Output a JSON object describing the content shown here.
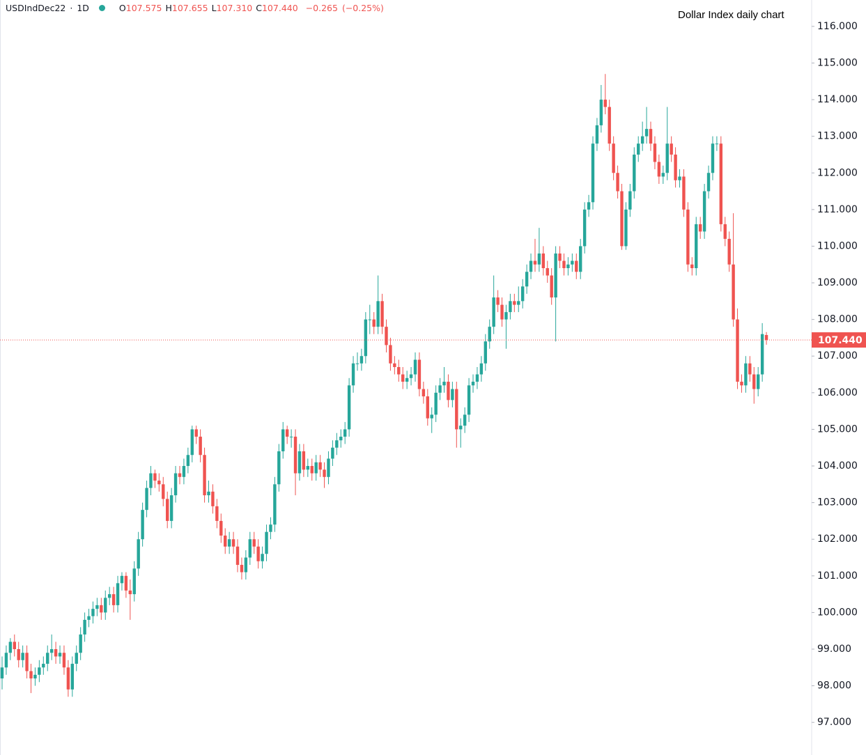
{
  "header": {
    "symbol": "USDIndDec22",
    "interval": "1D",
    "ohlc_legend": [
      {
        "key": "O",
        "value": "107.575"
      },
      {
        "key": "H",
        "value": "107.655"
      },
      {
        "key": "L",
        "value": "107.310"
      },
      {
        "key": "C",
        "value": "107.440"
      }
    ],
    "change": "−0.265",
    "change_pct": "(−0.25%)"
  },
  "chart_data": {
    "type": "candlestick",
    "annotation": "Dollar Index daily chart",
    "up_color": "#26a69a",
    "down_color": "#ef5350",
    "ylim": [
      96.11,
      116.72
    ],
    "yticks": [
      {
        "value": 97,
        "label": "97.000"
      },
      {
        "value": 98,
        "label": "98.000"
      },
      {
        "value": 99,
        "label": "99.000"
      },
      {
        "value": 100,
        "label": "100.000"
      },
      {
        "value": 101,
        "label": "101.000"
      },
      {
        "value": 102,
        "label": "102.000"
      },
      {
        "value": 103,
        "label": "103.000"
      },
      {
        "value": 104,
        "label": "104.000"
      },
      {
        "value": 105,
        "label": "105.000"
      },
      {
        "value": 106,
        "label": "106.000"
      },
      {
        "value": 107,
        "label": "107.000"
      },
      {
        "value": 108,
        "label": "108.000"
      },
      {
        "value": 109,
        "label": "109.000"
      },
      {
        "value": 110,
        "label": "110.000"
      },
      {
        "value": 111,
        "label": "111.000"
      },
      {
        "value": 112,
        "label": "112.000"
      },
      {
        "value": 113,
        "label": "113.000"
      },
      {
        "value": 114,
        "label": "114.000"
      },
      {
        "value": 115,
        "label": "115.000"
      },
      {
        "value": 116,
        "label": "116.000"
      }
    ],
    "last_price": {
      "value": 107.44,
      "label": "107.440"
    },
    "ohlc": [
      [
        98.2,
        98.8,
        97.9,
        98.5
      ],
      [
        98.5,
        99.1,
        98.3,
        98.9
      ],
      [
        98.9,
        99.3,
        98.7,
        99.2
      ],
      [
        99.2,
        99.4,
        98.8,
        99.0
      ],
      [
        99.0,
        99.2,
        98.5,
        98.7
      ],
      [
        98.7,
        99.1,
        98.5,
        98.9
      ],
      [
        98.9,
        99.1,
        98.2,
        98.4
      ],
      [
        98.4,
        98.6,
        97.8,
        98.2
      ],
      [
        98.2,
        98.5,
        98.0,
        98.3
      ],
      [
        98.3,
        98.7,
        98.1,
        98.5
      ],
      [
        98.5,
        98.8,
        98.3,
        98.6
      ],
      [
        98.6,
        99.1,
        98.4,
        98.9
      ],
      [
        98.9,
        99.4,
        98.7,
        99.0
      ],
      [
        99.0,
        99.2,
        98.6,
        98.8
      ],
      [
        98.8,
        99.1,
        98.6,
        98.9
      ],
      [
        98.9,
        99.1,
        98.3,
        98.5
      ],
      [
        98.5,
        98.7,
        97.7,
        97.9
      ],
      [
        97.9,
        98.8,
        97.7,
        98.6
      ],
      [
        98.6,
        99.1,
        98.4,
        98.9
      ],
      [
        98.9,
        99.6,
        98.7,
        99.4
      ],
      [
        99.4,
        100.0,
        99.2,
        99.8
      ],
      [
        99.8,
        100.1,
        99.6,
        99.9
      ],
      [
        99.9,
        100.3,
        99.7,
        100.1
      ],
      [
        100.1,
        100.4,
        99.9,
        100.2
      ],
      [
        100.2,
        100.4,
        99.8,
        100.0
      ],
      [
        100.0,
        100.6,
        99.8,
        100.4
      ],
      [
        100.4,
        100.7,
        100.2,
        100.5
      ],
      [
        100.5,
        100.7,
        100.0,
        100.2
      ],
      [
        100.2,
        101.0,
        100.0,
        100.8
      ],
      [
        100.8,
        101.1,
        100.6,
        101.0
      ],
      [
        101.0,
        101.1,
        100.4,
        100.6
      ],
      [
        100.6,
        100.9,
        99.8,
        100.5
      ],
      [
        100.5,
        101.4,
        100.3,
        101.2
      ],
      [
        101.2,
        102.2,
        101.0,
        102.0
      ],
      [
        102.0,
        103.0,
        101.8,
        102.8
      ],
      [
        102.8,
        103.6,
        102.6,
        103.4
      ],
      [
        103.4,
        104.0,
        103.2,
        103.8
      ],
      [
        103.8,
        103.9,
        103.4,
        103.6
      ],
      [
        103.6,
        103.8,
        103.3,
        103.5
      ],
      [
        103.5,
        103.7,
        102.9,
        103.1
      ],
      [
        103.1,
        103.3,
        102.3,
        102.5
      ],
      [
        102.5,
        103.4,
        102.3,
        103.2
      ],
      [
        103.2,
        104.0,
        103.0,
        103.8
      ],
      [
        103.8,
        104.0,
        103.5,
        103.7
      ],
      [
        103.7,
        104.2,
        103.5,
        104.0
      ],
      [
        104.0,
        104.5,
        103.8,
        104.3
      ],
      [
        104.3,
        105.1,
        104.1,
        105.0
      ],
      [
        105.0,
        105.1,
        104.6,
        104.8
      ],
      [
        104.8,
        105.0,
        104.1,
        104.3
      ],
      [
        104.3,
        104.5,
        103.0,
        103.2
      ],
      [
        103.2,
        103.6,
        103.0,
        103.3
      ],
      [
        103.3,
        103.5,
        102.7,
        102.9
      ],
      [
        102.9,
        103.1,
        102.3,
        102.5
      ],
      [
        102.5,
        102.7,
        101.9,
        102.1
      ],
      [
        102.1,
        102.3,
        101.6,
        101.8
      ],
      [
        101.8,
        102.2,
        101.6,
        102.0
      ],
      [
        102.0,
        102.2,
        101.6,
        101.8
      ],
      [
        101.8,
        102.0,
        101.1,
        101.3
      ],
      [
        101.3,
        101.5,
        100.9,
        101.1
      ],
      [
        101.1,
        101.7,
        100.9,
        101.5
      ],
      [
        101.5,
        102.2,
        101.3,
        102.0
      ],
      [
        102.0,
        102.2,
        101.6,
        101.8
      ],
      [
        101.8,
        102.0,
        101.2,
        101.4
      ],
      [
        101.4,
        101.8,
        101.2,
        101.6
      ],
      [
        101.6,
        102.4,
        101.4,
        102.2
      ],
      [
        102.2,
        102.6,
        102.0,
        102.4
      ],
      [
        102.4,
        103.7,
        102.2,
        103.5
      ],
      [
        103.5,
        104.6,
        103.3,
        104.4
      ],
      [
        104.4,
        105.2,
        104.2,
        105.0
      ],
      [
        105.0,
        105.1,
        104.6,
        104.8
      ],
      [
        104.8,
        105.0,
        104.5,
        104.8
      ],
      [
        104.8,
        105.0,
        103.2,
        103.8
      ],
      [
        103.8,
        104.6,
        103.6,
        104.4
      ],
      [
        104.4,
        104.6,
        103.7,
        103.9
      ],
      [
        103.9,
        104.2,
        103.7,
        104.0
      ],
      [
        104.0,
        104.2,
        103.6,
        103.8
      ],
      [
        103.8,
        104.3,
        103.6,
        104.1
      ],
      [
        104.1,
        104.3,
        103.7,
        103.9
      ],
      [
        103.9,
        104.1,
        103.4,
        103.7
      ],
      [
        103.7,
        104.4,
        103.5,
        104.2
      ],
      [
        104.2,
        104.7,
        104.0,
        104.5
      ],
      [
        104.5,
        104.9,
        104.3,
        104.7
      ],
      [
        104.7,
        105.0,
        104.5,
        104.8
      ],
      [
        104.8,
        105.2,
        104.6,
        105.0
      ],
      [
        105.0,
        106.4,
        104.8,
        106.2
      ],
      [
        106.2,
        107.0,
        106.0,
        106.8
      ],
      [
        106.8,
        107.1,
        106.6,
        106.8
      ],
      [
        106.8,
        107.2,
        106.6,
        107.0
      ],
      [
        107.0,
        108.2,
        106.8,
        108.0
      ],
      [
        108.0,
        108.4,
        107.6,
        108.0
      ],
      [
        108.0,
        108.2,
        107.6,
        107.8
      ],
      [
        107.8,
        109.2,
        107.6,
        108.5
      ],
      [
        108.5,
        108.7,
        107.6,
        107.8
      ],
      [
        107.8,
        108.0,
        107.1,
        107.3
      ],
      [
        107.3,
        107.5,
        106.6,
        106.8
      ],
      [
        106.8,
        107.0,
        106.5,
        106.7
      ],
      [
        106.7,
        106.9,
        106.3,
        106.5
      ],
      [
        106.5,
        106.7,
        106.1,
        106.3
      ],
      [
        106.3,
        106.6,
        106.1,
        106.4
      ],
      [
        106.4,
        106.7,
        106.2,
        106.5
      ],
      [
        106.5,
        107.1,
        106.3,
        106.9
      ],
      [
        106.9,
        107.1,
        105.9,
        106.1
      ],
      [
        106.1,
        106.3,
        105.7,
        105.9
      ],
      [
        105.9,
        106.1,
        105.1,
        105.3
      ],
      [
        105.3,
        105.6,
        104.9,
        105.4
      ],
      [
        105.4,
        106.2,
        105.2,
        106.0
      ],
      [
        106.0,
        106.4,
        105.8,
        106.2
      ],
      [
        106.2,
        106.7,
        106.0,
        106.3
      ],
      [
        106.3,
        106.5,
        105.6,
        105.8
      ],
      [
        105.8,
        106.3,
        105.6,
        106.1
      ],
      [
        106.1,
        106.3,
        104.5,
        105.0
      ],
      [
        105.0,
        105.3,
        104.5,
        105.1
      ],
      [
        105.1,
        105.6,
        104.9,
        105.4
      ],
      [
        105.4,
        106.4,
        105.2,
        106.2
      ],
      [
        106.2,
        106.5,
        106.0,
        106.3
      ],
      [
        106.3,
        106.7,
        106.1,
        106.5
      ],
      [
        106.5,
        107.0,
        106.3,
        106.8
      ],
      [
        106.8,
        107.6,
        106.6,
        107.4
      ],
      [
        107.4,
        108.0,
        107.2,
        107.8
      ],
      [
        107.8,
        109.2,
        107.6,
        108.6
      ],
      [
        108.6,
        108.8,
        108.2,
        108.4
      ],
      [
        108.4,
        108.6,
        107.8,
        108.0
      ],
      [
        108.0,
        108.4,
        107.2,
        108.2
      ],
      [
        108.2,
        108.7,
        108.0,
        108.5
      ],
      [
        108.5,
        108.7,
        108.2,
        108.4
      ],
      [
        108.4,
        108.9,
        108.2,
        108.5
      ],
      [
        108.5,
        109.1,
        108.3,
        108.9
      ],
      [
        108.9,
        109.5,
        108.7,
        109.3
      ],
      [
        109.3,
        109.8,
        109.1,
        109.6
      ],
      [
        109.6,
        110.2,
        109.3,
        109.5
      ],
      [
        109.5,
        110.5,
        109.3,
        109.8
      ],
      [
        109.8,
        110.0,
        109.2,
        109.4
      ],
      [
        109.4,
        109.6,
        109.0,
        109.2
      ],
      [
        109.2,
        109.4,
        108.4,
        108.6
      ],
      [
        108.6,
        110.0,
        107.4,
        109.8
      ],
      [
        109.8,
        110.0,
        109.4,
        109.6
      ],
      [
        109.6,
        109.8,
        109.2,
        109.4
      ],
      [
        109.4,
        109.7,
        109.2,
        109.5
      ],
      [
        109.5,
        109.8,
        109.3,
        109.6
      ],
      [
        109.6,
        109.8,
        109.1,
        109.3
      ],
      [
        109.3,
        110.2,
        109.1,
        110.0
      ],
      [
        110.0,
        111.2,
        109.8,
        111.0
      ],
      [
        111.0,
        111.4,
        110.8,
        111.2
      ],
      [
        111.2,
        113.0,
        111.0,
        112.8
      ],
      [
        112.8,
        113.5,
        112.6,
        113.3
      ],
      [
        113.3,
        114.4,
        113.1,
        114.0
      ],
      [
        114.0,
        114.7,
        113.6,
        113.8
      ],
      [
        113.8,
        114.0,
        112.6,
        112.8
      ],
      [
        112.8,
        113.0,
        111.8,
        112.0
      ],
      [
        112.0,
        112.2,
        111.3,
        111.5
      ],
      [
        111.5,
        111.7,
        109.9,
        110.0
      ],
      [
        110.0,
        111.2,
        109.9,
        111.0
      ],
      [
        111.0,
        111.7,
        110.8,
        111.5
      ],
      [
        111.5,
        112.7,
        111.3,
        112.5
      ],
      [
        112.5,
        113.0,
        112.3,
        112.8
      ],
      [
        112.8,
        113.4,
        112.6,
        113.0
      ],
      [
        113.0,
        113.8,
        112.8,
        113.2
      ],
      [
        113.2,
        113.4,
        112.6,
        112.8
      ],
      [
        112.8,
        113.0,
        112.1,
        112.3
      ],
      [
        112.3,
        112.5,
        111.7,
        111.9
      ],
      [
        111.9,
        112.2,
        111.7,
        112.0
      ],
      [
        112.0,
        113.8,
        111.8,
        112.8
      ],
      [
        112.8,
        113.0,
        112.3,
        112.5
      ],
      [
        112.5,
        112.7,
        111.6,
        111.8
      ],
      [
        111.8,
        112.1,
        111.6,
        111.9
      ],
      [
        111.9,
        112.1,
        110.8,
        111.0
      ],
      [
        111.0,
        111.2,
        109.3,
        109.5
      ],
      [
        109.5,
        109.7,
        109.2,
        109.4
      ],
      [
        109.4,
        110.8,
        109.2,
        110.6
      ],
      [
        110.6,
        110.8,
        110.2,
        110.4
      ],
      [
        110.4,
        111.7,
        110.2,
        111.5
      ],
      [
        111.5,
        112.2,
        111.3,
        112.0
      ],
      [
        112.0,
        113.0,
        111.8,
        112.8
      ],
      [
        112.8,
        113.0,
        112.6,
        112.8
      ],
      [
        112.8,
        113.0,
        110.4,
        110.6
      ],
      [
        110.6,
        110.8,
        110.0,
        110.2
      ],
      [
        110.2,
        110.4,
        109.3,
        109.5
      ],
      [
        109.5,
        110.9,
        107.8,
        108.0
      ],
      [
        108.0,
        108.3,
        106.1,
        106.3
      ],
      [
        106.3,
        106.5,
        106.0,
        106.2
      ],
      [
        106.2,
        107.0,
        106.0,
        106.8
      ],
      [
        106.8,
        107.0,
        106.3,
        106.5
      ],
      [
        106.5,
        106.7,
        105.7,
        106.1
      ],
      [
        106.1,
        106.7,
        105.9,
        106.5
      ],
      [
        106.5,
        107.9,
        106.3,
        107.6
      ],
      [
        107.575,
        107.655,
        107.31,
        107.44
      ]
    ]
  }
}
